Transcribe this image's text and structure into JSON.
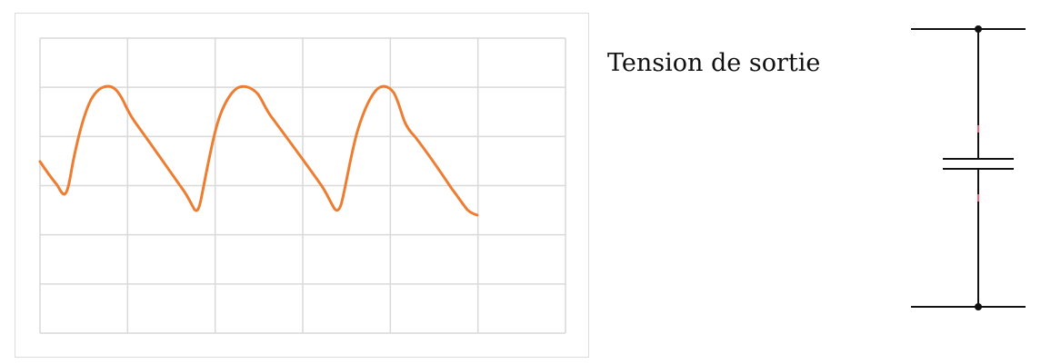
{
  "output_label": "Tension de sortie",
  "colors": {
    "waveform": "#ED7D31",
    "grid": "#d9d9d9",
    "frame": "#dcdcdc",
    "wire": "#111111",
    "capacitor_lead_mark": "#f0607a"
  },
  "oscilloscope": {
    "grid_columns": 6,
    "grid_rows": 6,
    "waveform_shape": "sawtooth-like periodic signal, 3 periods",
    "periods": 3
  },
  "circuit": {
    "components": [
      "top-rail",
      "bottom-rail",
      "vertical-wire",
      "capacitor",
      "top-node",
      "bottom-node"
    ]
  }
}
